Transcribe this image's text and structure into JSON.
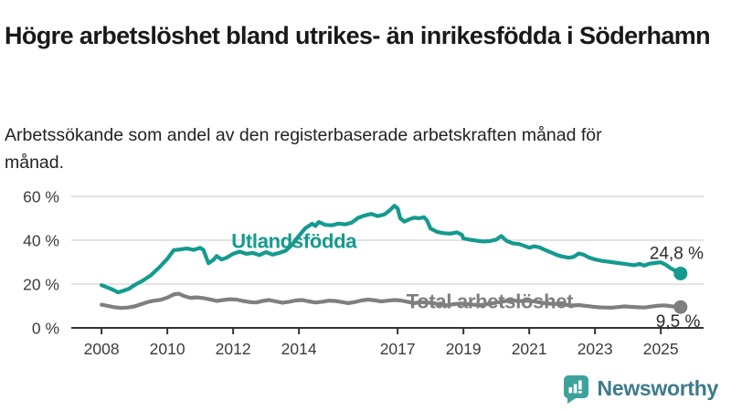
{
  "title": "Högre arbetslöshet bland utrikes- än inrikesfödda i Söderhamn",
  "subtitle": "Arbetssökande som andel av den registerbaserade arbetskraften månad för månad.",
  "footer": {
    "brand": "Newsworthy",
    "logo_icon": "bar-chart-speech-bubble-icon",
    "logo_color": "#3EA29B",
    "brand_color": "#3D7A8C"
  },
  "chart_data": {
    "type": "line",
    "title": "",
    "xlabel": "",
    "ylabel": "",
    "x_axis": {
      "ticks": [
        2008,
        2010,
        2012,
        2014,
        2017,
        2019,
        2021,
        2023,
        2025
      ],
      "range": [
        2007.08,
        2026.3
      ]
    },
    "y_axis": {
      "ticks": [
        0,
        20,
        40,
        60
      ],
      "suffix": " %",
      "range": [
        0,
        60
      ]
    },
    "grid": {
      "horizontal": true,
      "color": "#dcdcdc"
    },
    "axis_color": "#333333",
    "tick_label_color": "#3c3c3c",
    "value_label_color": "#2b2b2b",
    "series": [
      {
        "name": "Utlandsfödda",
        "color": "#149a8e",
        "label_pos": {
          "x": 2013.85,
          "y": 36.5,
          "anchor": "middle"
        },
        "end_label": "24,8 %",
        "end_label_pos": {
          "x": 2026.3,
          "y": 31.5,
          "anchor": "end"
        },
        "points": [
          [
            2008.0,
            19.5
          ],
          [
            2008.17,
            18.5
          ],
          [
            2008.33,
            17.5
          ],
          [
            2008.5,
            16.2
          ],
          [
            2008.67,
            17.0
          ],
          [
            2008.83,
            17.8
          ],
          [
            2009.0,
            19.5
          ],
          [
            2009.25,
            21.5
          ],
          [
            2009.5,
            24.0
          ],
          [
            2009.75,
            27.5
          ],
          [
            2010.0,
            31.5
          ],
          [
            2010.2,
            35.5
          ],
          [
            2010.4,
            35.8
          ],
          [
            2010.6,
            36.2
          ],
          [
            2010.8,
            35.6
          ],
          [
            2011.0,
            36.5
          ],
          [
            2011.1,
            35.5
          ],
          [
            2011.25,
            29.5
          ],
          [
            2011.4,
            31.0
          ],
          [
            2011.5,
            32.8
          ],
          [
            2011.65,
            31.2
          ],
          [
            2011.8,
            32.0
          ],
          [
            2012.0,
            33.8
          ],
          [
            2012.2,
            34.8
          ],
          [
            2012.4,
            33.8
          ],
          [
            2012.6,
            34.2
          ],
          [
            2012.8,
            33.2
          ],
          [
            2013.0,
            34.6
          ],
          [
            2013.2,
            33.4
          ],
          [
            2013.4,
            34.2
          ],
          [
            2013.6,
            35.2
          ],
          [
            2013.8,
            38.0
          ],
          [
            2014.0,
            42.0
          ],
          [
            2014.2,
            45.5
          ],
          [
            2014.4,
            47.5
          ],
          [
            2014.5,
            46.5
          ],
          [
            2014.6,
            48.3
          ],
          [
            2014.8,
            47.0
          ],
          [
            2015.0,
            46.8
          ],
          [
            2015.2,
            47.6
          ],
          [
            2015.4,
            47.2
          ],
          [
            2015.6,
            48.0
          ],
          [
            2015.8,
            50.2
          ],
          [
            2016.0,
            51.3
          ],
          [
            2016.2,
            52.0
          ],
          [
            2016.4,
            51.0
          ],
          [
            2016.6,
            51.8
          ],
          [
            2016.75,
            53.5
          ],
          [
            2016.9,
            55.7
          ],
          [
            2017.0,
            54.5
          ],
          [
            2017.08,
            50.0
          ],
          [
            2017.2,
            48.5
          ],
          [
            2017.35,
            49.5
          ],
          [
            2017.5,
            50.3
          ],
          [
            2017.65,
            50.0
          ],
          [
            2017.8,
            50.5
          ],
          [
            2017.9,
            48.8
          ],
          [
            2018.0,
            45.3
          ],
          [
            2018.2,
            43.8
          ],
          [
            2018.4,
            43.2
          ],
          [
            2018.6,
            43.0
          ],
          [
            2018.8,
            43.6
          ],
          [
            2018.95,
            42.5
          ],
          [
            2019.0,
            40.8
          ],
          [
            2019.2,
            40.2
          ],
          [
            2019.4,
            39.8
          ],
          [
            2019.6,
            39.4
          ],
          [
            2019.8,
            39.6
          ],
          [
            2020.0,
            40.3
          ],
          [
            2020.15,
            41.9
          ],
          [
            2020.3,
            39.8
          ],
          [
            2020.5,
            38.6
          ],
          [
            2020.7,
            38.2
          ],
          [
            2020.85,
            37.4
          ],
          [
            2021.0,
            36.6
          ],
          [
            2021.15,
            37.2
          ],
          [
            2021.3,
            36.8
          ],
          [
            2021.5,
            35.4
          ],
          [
            2021.7,
            34.2
          ],
          [
            2021.85,
            33.2
          ],
          [
            2022.0,
            32.6
          ],
          [
            2022.2,
            32.0
          ],
          [
            2022.35,
            32.4
          ],
          [
            2022.5,
            33.9
          ],
          [
            2022.65,
            33.4
          ],
          [
            2022.8,
            32.2
          ],
          [
            2023.0,
            31.2
          ],
          [
            2023.2,
            30.6
          ],
          [
            2023.4,
            30.2
          ],
          [
            2023.6,
            29.8
          ],
          [
            2023.8,
            29.4
          ],
          [
            2024.0,
            29.0
          ],
          [
            2024.2,
            28.6
          ],
          [
            2024.35,
            29.2
          ],
          [
            2024.5,
            28.4
          ],
          [
            2024.65,
            29.3
          ],
          [
            2024.8,
            29.6
          ],
          [
            2025.0,
            29.9
          ],
          [
            2025.15,
            28.8
          ],
          [
            2025.3,
            27.2
          ],
          [
            2025.45,
            26.0
          ],
          [
            2025.6,
            24.8
          ]
        ]
      },
      {
        "name": "Total arbetslöshet",
        "color": "#7f7f7f",
        "label_pos": {
          "x": 2019.8,
          "y": 9.0,
          "anchor": "middle"
        },
        "end_label": "9,5 %",
        "end_label_pos": {
          "x": 2026.2,
          "y": 0.4,
          "anchor": "end"
        },
        "points": [
          [
            2008.0,
            10.6
          ],
          [
            2008.2,
            10.0
          ],
          [
            2008.4,
            9.4
          ],
          [
            2008.6,
            9.1
          ],
          [
            2008.8,
            9.3
          ],
          [
            2009.0,
            9.8
          ],
          [
            2009.2,
            10.8
          ],
          [
            2009.4,
            11.8
          ],
          [
            2009.6,
            12.4
          ],
          [
            2009.8,
            12.8
          ],
          [
            2010.0,
            13.8
          ],
          [
            2010.2,
            15.3
          ],
          [
            2010.35,
            15.6
          ],
          [
            2010.5,
            14.6
          ],
          [
            2010.7,
            13.7
          ],
          [
            2010.9,
            13.9
          ],
          [
            2011.1,
            13.6
          ],
          [
            2011.3,
            13.0
          ],
          [
            2011.5,
            12.3
          ],
          [
            2011.7,
            12.7
          ],
          [
            2011.9,
            13.1
          ],
          [
            2012.1,
            12.9
          ],
          [
            2012.3,
            12.3
          ],
          [
            2012.5,
            11.8
          ],
          [
            2012.7,
            11.6
          ],
          [
            2012.9,
            12.3
          ],
          [
            2013.1,
            12.7
          ],
          [
            2013.3,
            12.1
          ],
          [
            2013.5,
            11.5
          ],
          [
            2013.7,
            11.9
          ],
          [
            2013.9,
            12.5
          ],
          [
            2014.1,
            12.7
          ],
          [
            2014.3,
            12.1
          ],
          [
            2014.5,
            11.6
          ],
          [
            2014.7,
            11.9
          ],
          [
            2014.9,
            12.4
          ],
          [
            2015.1,
            12.3
          ],
          [
            2015.3,
            11.8
          ],
          [
            2015.5,
            11.3
          ],
          [
            2015.7,
            11.8
          ],
          [
            2015.9,
            12.5
          ],
          [
            2016.1,
            12.9
          ],
          [
            2016.3,
            12.6
          ],
          [
            2016.5,
            12.1
          ],
          [
            2016.7,
            12.4
          ],
          [
            2016.9,
            12.7
          ],
          [
            2017.1,
            12.5
          ],
          [
            2017.3,
            11.9
          ],
          [
            2017.5,
            11.3
          ],
          [
            2017.7,
            11.7
          ],
          [
            2017.9,
            11.6
          ],
          [
            2018.1,
            11.2
          ],
          [
            2018.3,
            10.7
          ],
          [
            2018.5,
            10.3
          ],
          [
            2018.7,
            10.8
          ],
          [
            2018.9,
            11.1
          ],
          [
            2019.1,
            10.9
          ],
          [
            2019.3,
            10.6
          ],
          [
            2019.5,
            10.4
          ],
          [
            2019.7,
            10.8
          ],
          [
            2019.9,
            11.2
          ],
          [
            2020.1,
            11.8
          ],
          [
            2020.3,
            12.3
          ],
          [
            2020.5,
            12.5
          ],
          [
            2020.7,
            12.2
          ],
          [
            2020.9,
            12.4
          ],
          [
            2021.1,
            12.2
          ],
          [
            2021.3,
            11.7
          ],
          [
            2021.5,
            11.2
          ],
          [
            2021.7,
            11.0
          ],
          [
            2021.9,
            10.9
          ],
          [
            2022.1,
            10.6
          ],
          [
            2022.3,
            10.2
          ],
          [
            2022.5,
            10.4
          ],
          [
            2022.7,
            10.1
          ],
          [
            2022.9,
            9.7
          ],
          [
            2023.1,
            9.4
          ],
          [
            2023.3,
            9.3
          ],
          [
            2023.5,
            9.2
          ],
          [
            2023.7,
            9.5
          ],
          [
            2023.9,
            9.8
          ],
          [
            2024.1,
            9.6
          ],
          [
            2024.3,
            9.4
          ],
          [
            2024.5,
            9.3
          ],
          [
            2024.7,
            9.7
          ],
          [
            2024.9,
            10.1
          ],
          [
            2025.1,
            10.3
          ],
          [
            2025.25,
            10.0
          ],
          [
            2025.4,
            9.7
          ],
          [
            2025.6,
            9.5
          ]
        ]
      }
    ]
  }
}
